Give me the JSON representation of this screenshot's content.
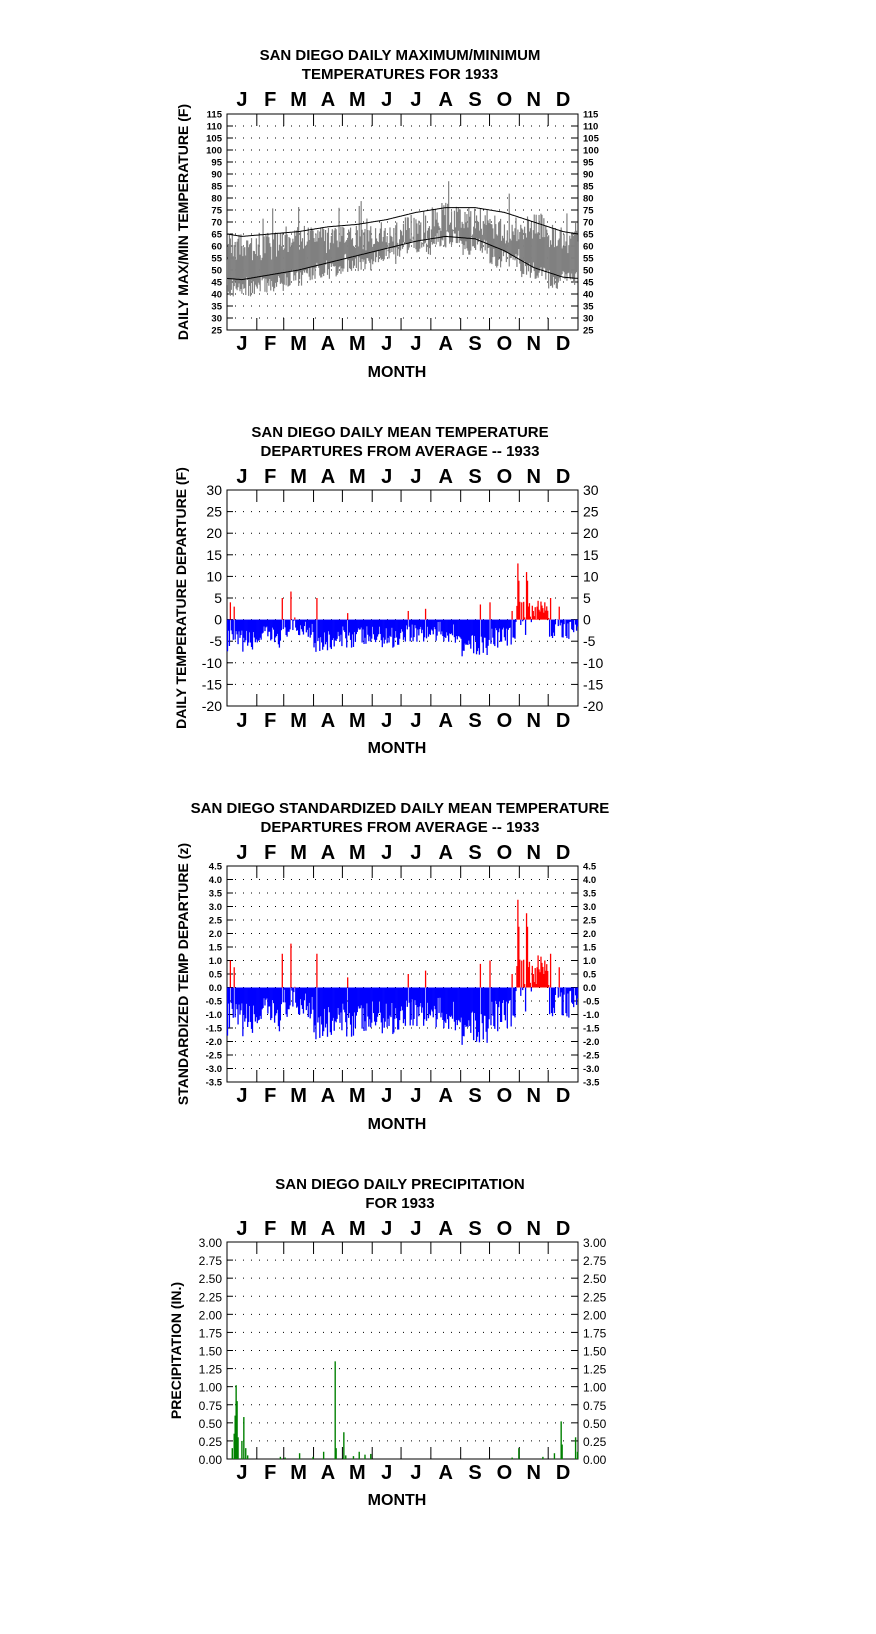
{
  "months": [
    "J",
    "F",
    "M",
    "A",
    "M",
    "J",
    "J",
    "A",
    "S",
    "O",
    "N",
    "D"
  ],
  "colors": {
    "positive": "#ff0000",
    "negative": "#0000ff",
    "precip": "#008000",
    "daily_range": "#808080",
    "normal_lines": "#000000"
  },
  "chart_data": [
    {
      "id": "maxmin",
      "type": "area",
      "title_lines": [
        "SAN DIEGO DAILY MAXIMUM/MINIMUM",
        "TEMPERATURES FOR 1933"
      ],
      "xlabel": "MONTH",
      "ylabel": "DAILY MAX/MIN TEMPERATURE (F)",
      "ylim": [
        25,
        115
      ],
      "yticks": [
        25,
        30,
        35,
        40,
        45,
        50,
        55,
        60,
        65,
        70,
        75,
        80,
        85,
        90,
        95,
        100,
        105,
        110,
        115
      ],
      "grid": "dotted",
      "daily_range_monthly_mean": {
        "months": [
          "Jan",
          "Feb",
          "Mar",
          "Apr",
          "May",
          "Jun",
          "Jul",
          "Aug",
          "Sep",
          "Oct",
          "Nov",
          "Dec"
        ],
        "max": [
          60,
          60,
          63,
          63,
          63,
          64,
          67,
          72,
          70,
          67,
          68,
          63
        ],
        "min": [
          43,
          44,
          47,
          50,
          53,
          56,
          60,
          63,
          60,
          55,
          50,
          46
        ]
      },
      "normal_max_monthly": [
        64,
        65,
        66,
        68,
        69,
        71,
        74,
        76,
        76,
        74,
        70,
        66
      ],
      "normal_min_monthly": [
        46,
        48,
        50,
        53,
        56,
        59,
        62,
        64,
        63,
        58,
        51,
        47
      ]
    },
    {
      "id": "departure",
      "type": "bar",
      "title_lines": [
        "SAN DIEGO DAILY MEAN TEMPERATURE",
        "DEPARTURES FROM AVERAGE -- 1933"
      ],
      "xlabel": "MONTH",
      "ylabel": "DAILY TEMPERATURE DEPARTURE (F)",
      "ylim": [
        -20,
        30
      ],
      "yticks": [
        -20,
        -15,
        -10,
        -5,
        0,
        5,
        10,
        15,
        20,
        25,
        30
      ],
      "grid": "dotted",
      "monthly_mean_departure": [
        -5,
        -4,
        -2,
        -5,
        -4,
        -4,
        -3,
        -3,
        -6,
        -4,
        2,
        -2
      ]
    },
    {
      "id": "standardized",
      "type": "bar",
      "title_lines": [
        "SAN DIEGO STANDARDIZED DAILY MEAN TEMPERATURE",
        "DEPARTURES FROM AVERAGE -- 1933"
      ],
      "xlabel": "MONTH",
      "ylabel": "STANDARDIZED TEMP DEPARTURE (z)",
      "ylim": [
        -3.5,
        4.5
      ],
      "yticks": [
        -3.5,
        -3.0,
        -2.5,
        -2.0,
        -1.5,
        -1.0,
        -0.5,
        0.0,
        0.5,
        1.0,
        1.5,
        2.0,
        2.5,
        3.0,
        3.5,
        4.0,
        4.5
      ],
      "grid": "dotted",
      "monthly_mean_departure": [
        -1.2,
        -1.0,
        -0.6,
        -1.3,
        -1.2,
        -1.1,
        -0.9,
        -1.0,
        -1.5,
        -1.0,
        0.6,
        -0.5
      ]
    },
    {
      "id": "precip",
      "type": "bar",
      "title_lines": [
        "SAN DIEGO DAILY PRECIPITATION",
        "FOR 1933"
      ],
      "xlabel": "MONTH",
      "ylabel": "PRECIPITATION (IN.)",
      "ylim": [
        0,
        3.0
      ],
      "yticks": [
        0.0,
        0.25,
        0.5,
        0.75,
        1.0,
        1.25,
        1.5,
        1.75,
        2.0,
        2.25,
        2.5,
        2.75,
        3.0
      ],
      "grid": "dotted",
      "daily_events": [
        {
          "day": 5,
          "value": 0.15
        },
        {
          "day": 7,
          "value": 0.35
        },
        {
          "day": 8,
          "value": 0.6
        },
        {
          "day": 9,
          "value": 1.02
        },
        {
          "day": 10,
          "value": 0.8
        },
        {
          "day": 11,
          "value": 0.3
        },
        {
          "day": 15,
          "value": 0.25
        },
        {
          "day": 17,
          "value": 0.58
        },
        {
          "day": 19,
          "value": 0.15
        },
        {
          "day": 21,
          "value": 0.05
        },
        {
          "day": 55,
          "value": 0.03
        },
        {
          "day": 60,
          "value": 0.02
        },
        {
          "day": 75,
          "value": 0.08
        },
        {
          "day": 89,
          "value": 0.03
        },
        {
          "day": 100,
          "value": 0.1
        },
        {
          "day": 112,
          "value": 1.35
        },
        {
          "day": 113,
          "value": 0.15
        },
        {
          "day": 121,
          "value": 0.37
        },
        {
          "day": 123,
          "value": 0.05
        },
        {
          "day": 131,
          "value": 0.04
        },
        {
          "day": 137,
          "value": 0.1
        },
        {
          "day": 143,
          "value": 0.06
        },
        {
          "day": 149,
          "value": 0.07
        },
        {
          "day": 296,
          "value": 0.02
        },
        {
          "day": 303,
          "value": 0.15
        },
        {
          "day": 328,
          "value": 0.03
        },
        {
          "day": 340,
          "value": 0.08
        },
        {
          "day": 347,
          "value": 0.52
        },
        {
          "day": 348,
          "value": 0.2
        },
        {
          "day": 362,
          "value": 0.3
        },
        {
          "day": 364,
          "value": 0.1
        }
      ]
    }
  ]
}
